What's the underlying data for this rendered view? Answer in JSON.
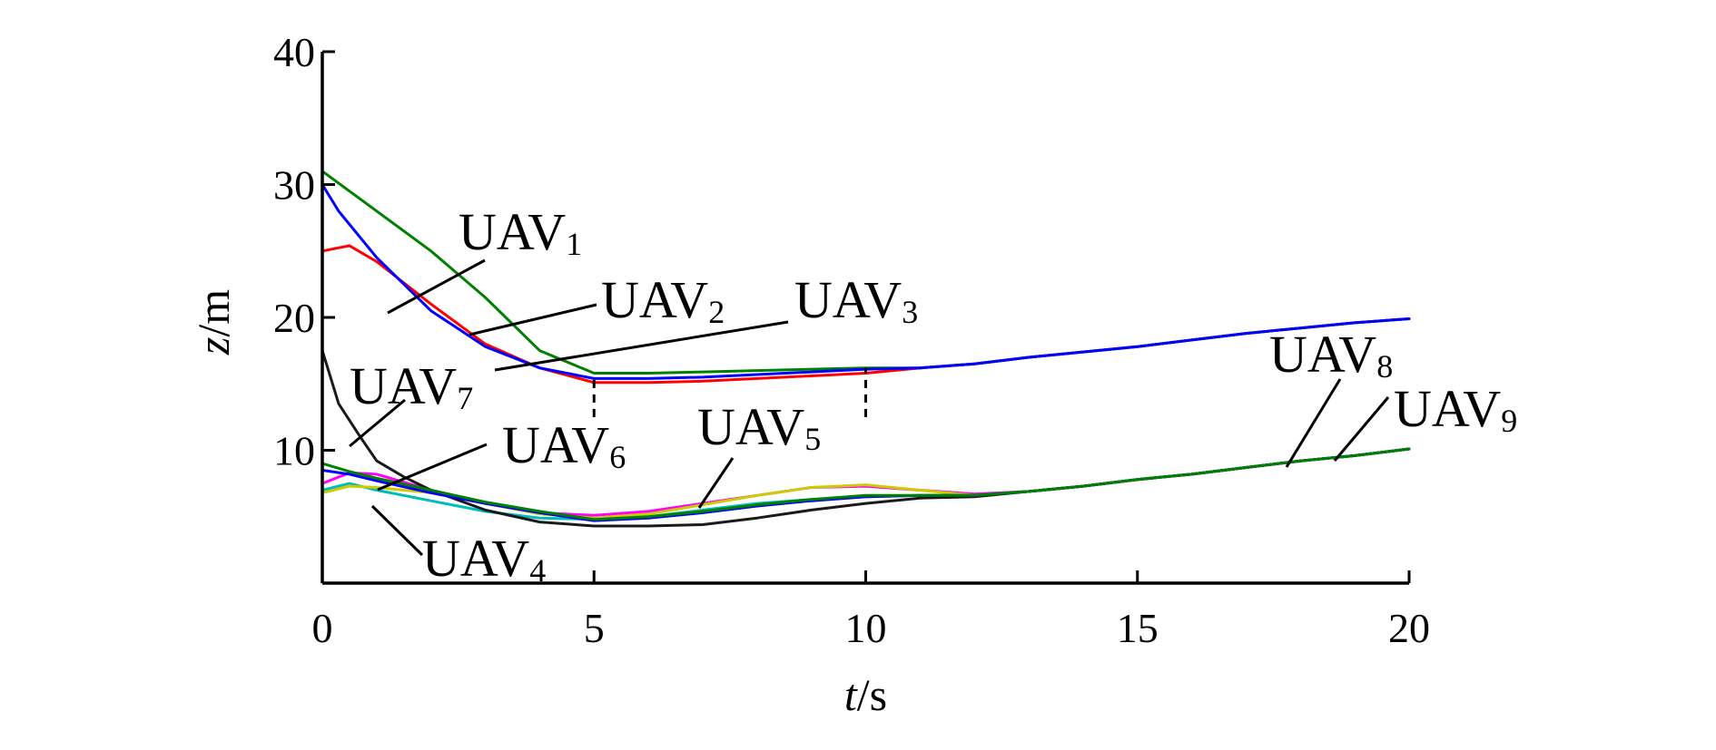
{
  "chart_data": {
    "type": "line",
    "xlabel": {
      "var": "t",
      "unit": "/s"
    },
    "ylabel": {
      "var": "z",
      "unit": "/m"
    },
    "xlim": [
      0,
      20
    ],
    "ylim": [
      0,
      40
    ],
    "xticks": [
      0,
      5,
      10,
      15,
      20
    ],
    "yticks": [
      10,
      20,
      30,
      40
    ],
    "xtick_labels": [
      "0",
      "5",
      "10",
      "15",
      "20"
    ],
    "ytick_labels": [
      "10",
      "20",
      "30",
      "40"
    ],
    "grid": false,
    "reference_lines": [
      {
        "x": 5,
        "y_from": 12.5,
        "y_to": 15.5,
        "style": "dashed"
      },
      {
        "x": 10,
        "y_from": 12.5,
        "y_to": 16.2,
        "style": "dashed"
      }
    ],
    "series": [
      {
        "label": "UAV",
        "sub": "1",
        "color": "#ff0000",
        "points": [
          [
            0,
            25
          ],
          [
            0.5,
            25.4
          ],
          [
            1,
            24.2
          ],
          [
            2,
            21
          ],
          [
            3,
            18
          ],
          [
            4,
            16.2
          ],
          [
            5,
            15.1
          ],
          [
            6,
            15.1
          ],
          [
            7,
            15.2
          ],
          [
            8,
            15.4
          ],
          [
            9,
            15.6
          ],
          [
            10,
            15.8
          ],
          [
            11,
            16.2
          ],
          [
            12,
            16.5
          ],
          [
            13,
            17
          ],
          [
            14,
            17.4
          ],
          [
            15,
            17.8
          ],
          [
            16,
            18.3
          ],
          [
            17,
            18.8
          ],
          [
            18,
            19.2
          ],
          [
            19,
            19.6
          ],
          [
            20,
            19.9
          ]
        ]
      },
      {
        "label": "UAV",
        "sub": "2",
        "color": "#008000",
        "points": [
          [
            0,
            31
          ],
          [
            1,
            28
          ],
          [
            2,
            25
          ],
          [
            3,
            21.5
          ],
          [
            4,
            17.5
          ],
          [
            5,
            15.8
          ],
          [
            6,
            15.8
          ],
          [
            7,
            15.9
          ],
          [
            8,
            16
          ],
          [
            9,
            16.1
          ],
          [
            10,
            16.2
          ],
          [
            11,
            16.2
          ],
          [
            12,
            16.5
          ],
          [
            13,
            17
          ],
          [
            14,
            17.4
          ],
          [
            15,
            17.8
          ],
          [
            16,
            18.3
          ],
          [
            17,
            18.8
          ],
          [
            18,
            19.2
          ],
          [
            19,
            19.6
          ],
          [
            20,
            19.9
          ]
        ]
      },
      {
        "label": "UAV",
        "sub": "3",
        "color": "#0000ff",
        "points": [
          [
            0,
            30
          ],
          [
            0.3,
            28
          ],
          [
            1,
            24.5
          ],
          [
            2,
            20.5
          ],
          [
            3,
            17.8
          ],
          [
            4,
            16.2
          ],
          [
            5,
            15.4
          ],
          [
            6,
            15.4
          ],
          [
            7,
            15.5
          ],
          [
            8,
            15.7
          ],
          [
            9,
            15.9
          ],
          [
            10,
            16.1
          ],
          [
            11,
            16.2
          ],
          [
            12,
            16.5
          ],
          [
            13,
            17
          ],
          [
            14,
            17.4
          ],
          [
            15,
            17.8
          ],
          [
            16,
            18.3
          ],
          [
            17,
            18.8
          ],
          [
            18,
            19.2
          ],
          [
            19,
            19.6
          ],
          [
            20,
            19.9
          ]
        ]
      },
      {
        "label": "UAV",
        "sub": "4",
        "color": "#00bcbc",
        "points": [
          [
            0,
            7
          ],
          [
            0.5,
            7.5
          ],
          [
            1,
            7
          ],
          [
            2,
            6.2
          ],
          [
            3,
            5.4
          ],
          [
            4,
            4.9
          ],
          [
            5,
            4.8
          ],
          [
            6,
            5
          ],
          [
            7,
            5.5
          ],
          [
            8,
            6
          ],
          [
            9,
            6.3
          ],
          [
            10,
            6.5
          ],
          [
            11,
            6.6
          ],
          [
            12,
            6.6
          ],
          [
            13,
            6.9
          ],
          [
            14,
            7.3
          ],
          [
            15,
            7.8
          ],
          [
            16,
            8.2
          ],
          [
            17,
            8.7
          ],
          [
            18,
            9.2
          ],
          [
            19,
            9.6
          ],
          [
            20,
            10.1
          ]
        ]
      },
      {
        "label": "UAV",
        "sub": "5",
        "color": "#ff00ff",
        "points": [
          [
            0,
            7.5
          ],
          [
            0.5,
            8.3
          ],
          [
            1,
            8.2
          ],
          [
            2,
            7
          ],
          [
            3,
            6
          ],
          [
            4,
            5.3
          ],
          [
            5,
            5.1
          ],
          [
            6,
            5.4
          ],
          [
            7,
            6
          ],
          [
            8,
            6.6
          ],
          [
            9,
            7.2
          ],
          [
            10,
            7.3
          ],
          [
            11,
            7
          ],
          [
            12,
            6.7
          ],
          [
            13,
            6.9
          ],
          [
            14,
            7.3
          ],
          [
            15,
            7.8
          ],
          [
            16,
            8.2
          ],
          [
            17,
            8.7
          ],
          [
            18,
            9.2
          ],
          [
            19,
            9.6
          ],
          [
            20,
            10.1
          ]
        ]
      },
      {
        "label": "UAV",
        "sub": "6",
        "color": "#cccc00",
        "points": [
          [
            0,
            6.8
          ],
          [
            0.5,
            7.3
          ],
          [
            1,
            7.2
          ],
          [
            2,
            6.8
          ],
          [
            3,
            6
          ],
          [
            4,
            5.2
          ],
          [
            5,
            4.9
          ],
          [
            6,
            5.2
          ],
          [
            7,
            5.9
          ],
          [
            8,
            6.6
          ],
          [
            9,
            7.2
          ],
          [
            10,
            7.4
          ],
          [
            11,
            7
          ],
          [
            12,
            6.6
          ],
          [
            13,
            6.9
          ],
          [
            14,
            7.3
          ],
          [
            15,
            7.8
          ],
          [
            16,
            8.2
          ],
          [
            17,
            8.7
          ],
          [
            18,
            9.2
          ],
          [
            19,
            9.6
          ],
          [
            20,
            10.1
          ]
        ]
      },
      {
        "label": "UAV",
        "sub": "7",
        "color": "#1a1a1a",
        "points": [
          [
            0,
            17.5
          ],
          [
            0.3,
            13.5
          ],
          [
            0.7,
            11
          ],
          [
            1,
            9.2
          ],
          [
            1.5,
            8
          ],
          [
            2,
            7
          ],
          [
            3,
            5.5
          ],
          [
            4,
            4.6
          ],
          [
            5,
            4.3
          ],
          [
            6,
            4.3
          ],
          [
            7,
            4.4
          ],
          [
            8,
            4.9
          ],
          [
            9,
            5.5
          ],
          [
            10,
            6
          ],
          [
            11,
            6.4
          ],
          [
            12,
            6.5
          ],
          [
            13,
            6.9
          ],
          [
            14,
            7.3
          ],
          [
            15,
            7.8
          ],
          [
            16,
            8.2
          ],
          [
            17,
            8.7
          ],
          [
            18,
            9.2
          ],
          [
            19,
            9.6
          ],
          [
            20,
            10.1
          ]
        ]
      },
      {
        "label": "UAV",
        "sub": "8",
        "color": "#0000ff",
        "points": [
          [
            0,
            8.5
          ],
          [
            0.5,
            8.2
          ],
          [
            1,
            7.7
          ],
          [
            2,
            6.8
          ],
          [
            3,
            6
          ],
          [
            4,
            5.3
          ],
          [
            5,
            4.7
          ],
          [
            6,
            4.9
          ],
          [
            7,
            5.3
          ],
          [
            8,
            5.8
          ],
          [
            9,
            6.2
          ],
          [
            10,
            6.5
          ],
          [
            11,
            6.6
          ],
          [
            12,
            6.6
          ],
          [
            13,
            6.9
          ],
          [
            14,
            7.3
          ],
          [
            15,
            7.8
          ],
          [
            16,
            8.2
          ],
          [
            17,
            8.7
          ],
          [
            18,
            9.2
          ],
          [
            19,
            9.6
          ],
          [
            20,
            10.1
          ]
        ]
      },
      {
        "label": "UAV",
        "sub": "9",
        "color": "#008000",
        "points": [
          [
            0,
            9
          ],
          [
            0.5,
            8.4
          ],
          [
            1,
            7.9
          ],
          [
            2,
            7
          ],
          [
            3,
            6.1
          ],
          [
            4,
            5.4
          ],
          [
            5,
            4.8
          ],
          [
            6,
            5
          ],
          [
            7,
            5.4
          ],
          [
            8,
            5.9
          ],
          [
            9,
            6.3
          ],
          [
            10,
            6.6
          ],
          [
            11,
            6.6
          ],
          [
            12,
            6.6
          ],
          [
            13,
            6.9
          ],
          [
            14,
            7.3
          ],
          [
            15,
            7.8
          ],
          [
            16,
            8.2
          ],
          [
            17,
            8.7
          ],
          [
            18,
            9.2
          ],
          [
            19,
            9.6
          ],
          [
            20,
            10.1
          ]
        ]
      }
    ]
  }
}
